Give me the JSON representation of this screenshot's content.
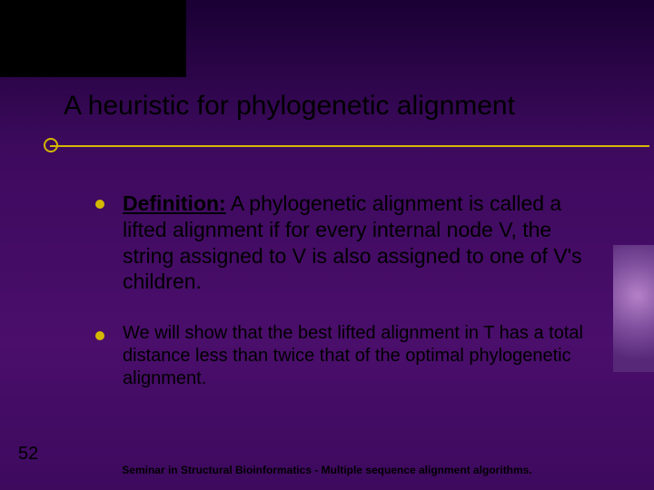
{
  "colors": {
    "accent": "#d4b800",
    "text": "#000000",
    "background_top": "#1a0033",
    "background_mid": "#4a0e6b"
  },
  "typography": {
    "title_fontsize": 30,
    "body_large_fontsize": 23,
    "body_small_fontsize": 20,
    "footer_fontsize": 12,
    "page_number_fontsize": 20
  },
  "title": "A heuristic for phylogenetic alignment",
  "bullets": [
    {
      "prefix_bold": "Definition:",
      "text": " A phylogenetic alignment is called a lifted alignment if for every internal node V, the string assigned to V is also assigned to one of V's children.",
      "fontsize": 23
    },
    {
      "prefix_bold": "",
      "text": "We will show that the best lifted alignment in T has a total distance less than twice that of the optimal phylogenetic alignment.",
      "fontsize": 20
    }
  ],
  "page_number": "52",
  "footer": "Seminar in Structural Bioinformatics - Multiple sequence alignment algorithms."
}
